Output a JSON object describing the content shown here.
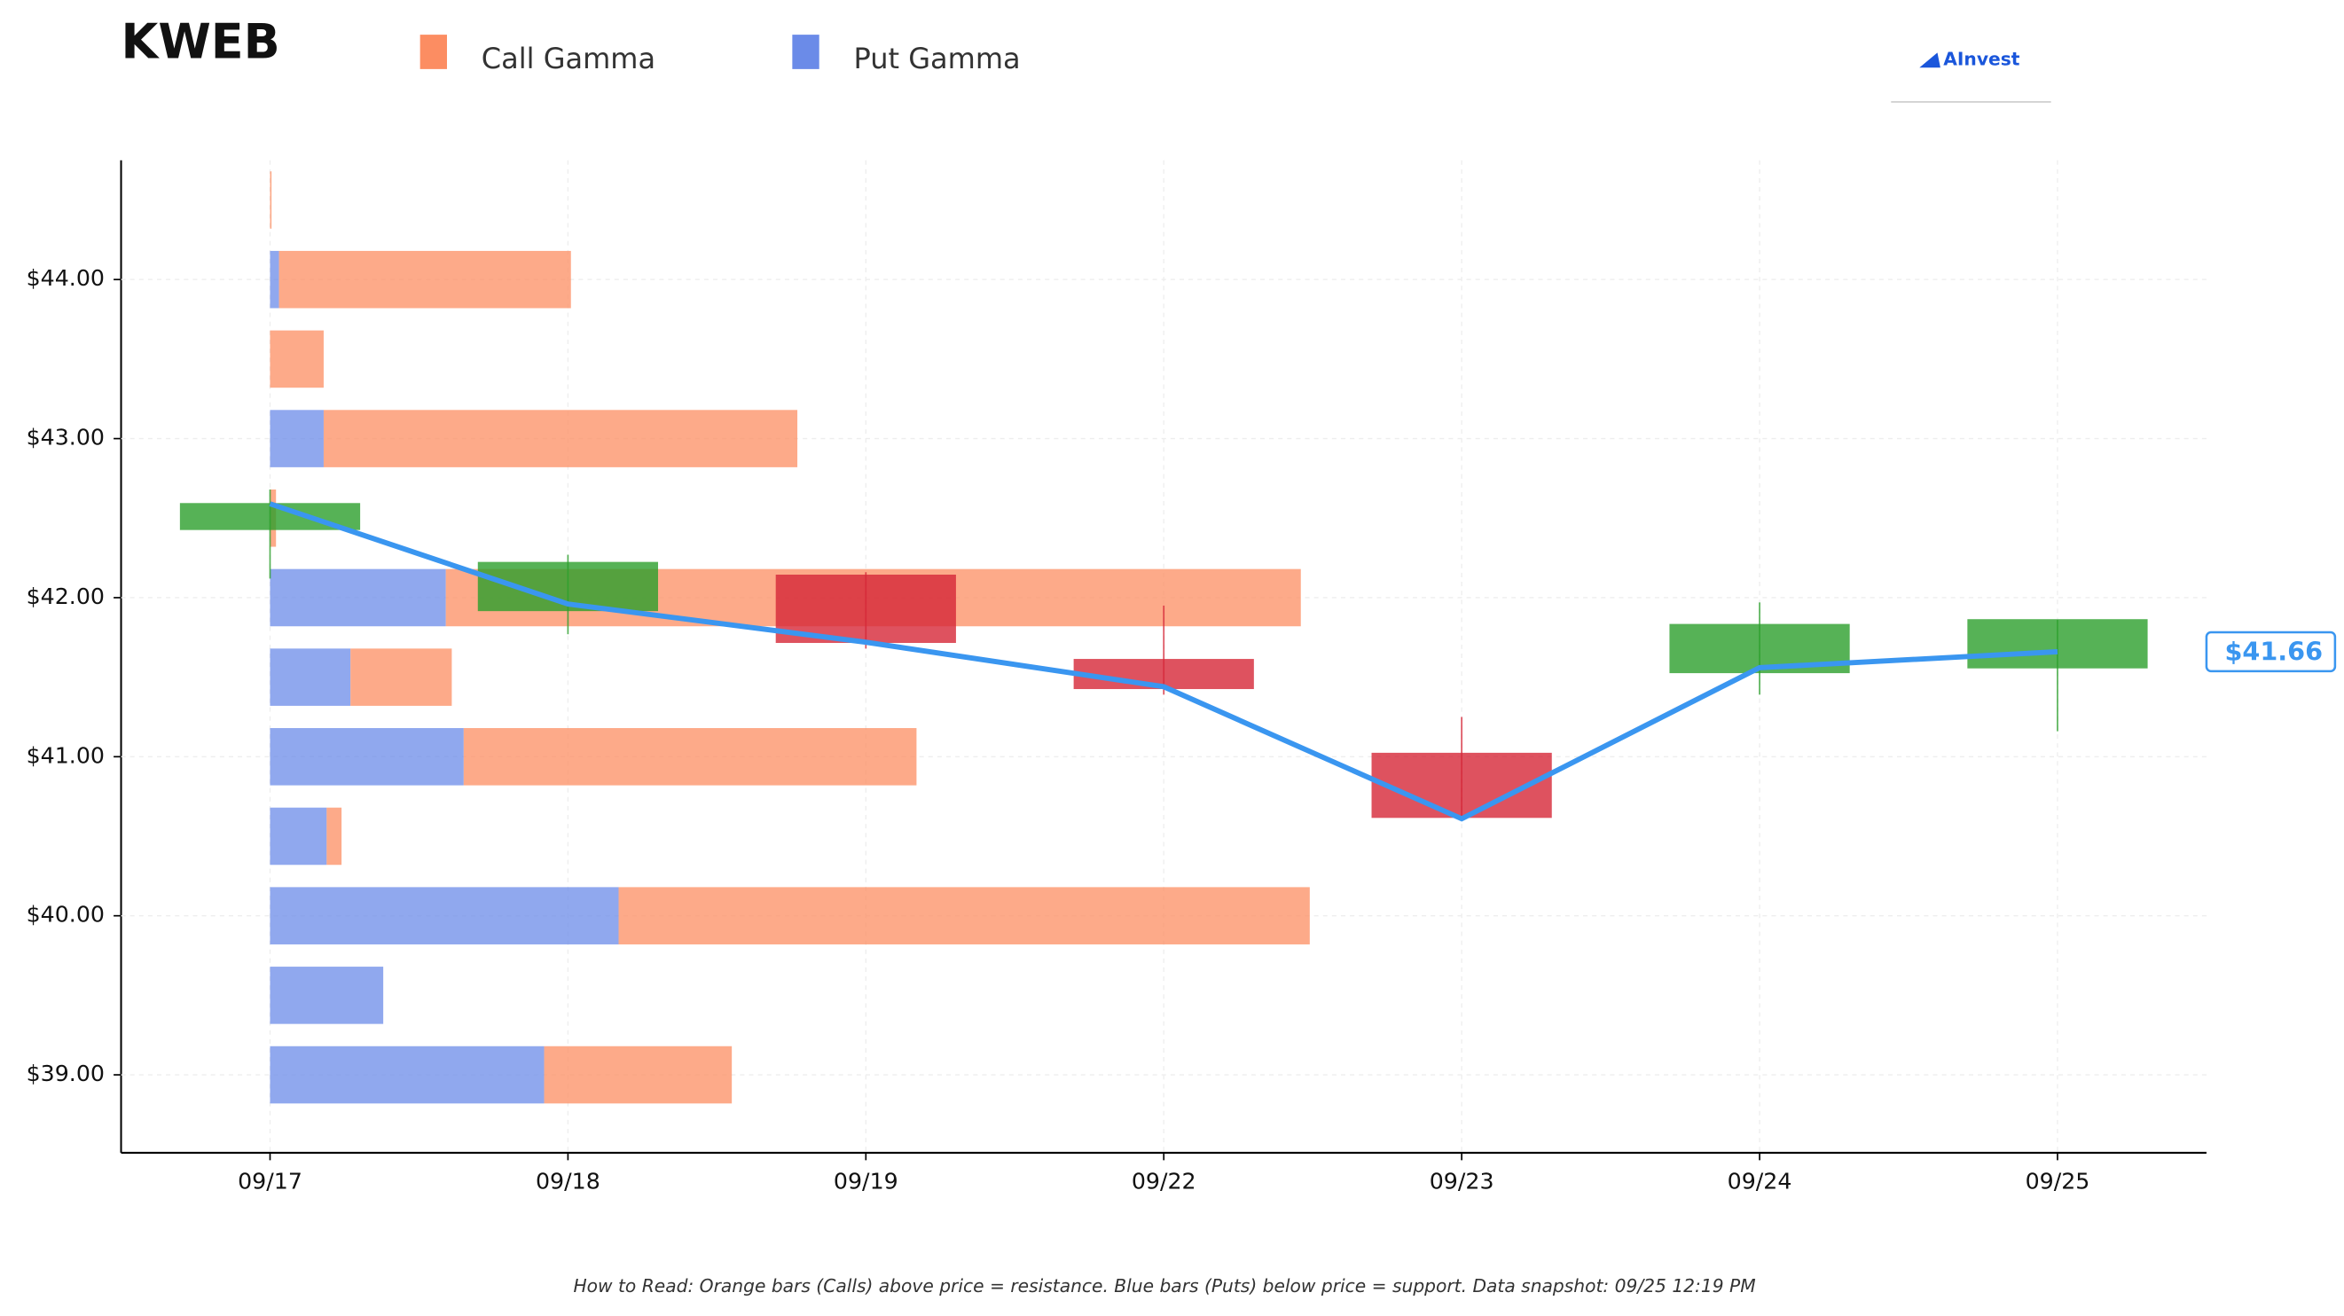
{
  "chart_data": {
    "type": "candlestick_gamma",
    "title": "KWEB",
    "brand": "AInvest",
    "footnote": "How to Read: Orange bars (Calls) above price = resistance. Blue bars (Puts) below price = support. Data snapshot: 09/25 12:19 PM",
    "categories": [
      "09/17",
      "09/18",
      "09/19",
      "09/22",
      "09/23",
      "09/24",
      "09/25"
    ],
    "xlim": [
      -0.5,
      6.5
    ],
    "ylim": [
      38.51,
      44.75
    ],
    "yticks": [
      {
        "value": 39,
        "label": "$39.00"
      },
      {
        "value": 40,
        "label": "$40.00"
      },
      {
        "value": 41,
        "label": "$41.00"
      },
      {
        "value": 42,
        "label": "$42.00"
      },
      {
        "value": 43,
        "label": "$43.00"
      },
      {
        "value": 44,
        "label": "$44.00"
      }
    ],
    "grid": true,
    "candles": {
      "up_color": "#2ca02c",
      "down_color": "#d62738",
      "open": [
        42.43,
        41.92,
        42.14,
        41.61,
        41.02,
        41.53,
        41.56
      ],
      "high": [
        42.68,
        42.27,
        42.16,
        41.95,
        41.25,
        41.97,
        41.86
      ],
      "low": [
        42.12,
        41.77,
        41.68,
        41.39,
        40.6,
        41.39,
        41.16
      ],
      "close": [
        42.59,
        42.22,
        41.72,
        41.43,
        40.62,
        41.83,
        41.86
      ]
    },
    "price_line": {
      "color": "#3a96f0",
      "values": [
        42.59,
        41.96,
        41.72,
        41.44,
        40.61,
        41.56,
        41.66
      ]
    },
    "last_price": {
      "value": 41.66,
      "label": "$41.66"
    },
    "gamma": {
      "levels": [
        44.5,
        44.0,
        43.5,
        43.0,
        42.5,
        42.0,
        41.5,
        41.0,
        40.5,
        40.0,
        39.5,
        39.0
      ],
      "series": [
        {
          "name": "Call Gamma",
          "color": "#fc8d62",
          "values": [
            0.005,
            0.98,
            0.18,
            1.59,
            0.02,
            2.87,
            0.34,
            1.52,
            0.05,
            2.32,
            0,
            0.63
          ]
        },
        {
          "name": "Put Gamma",
          "color": "#6b8be8",
          "values": [
            0,
            0.03,
            0,
            0.18,
            0,
            0.59,
            0.27,
            0.65,
            0.19,
            1.17,
            0.38,
            0.92
          ]
        }
      ]
    }
  }
}
